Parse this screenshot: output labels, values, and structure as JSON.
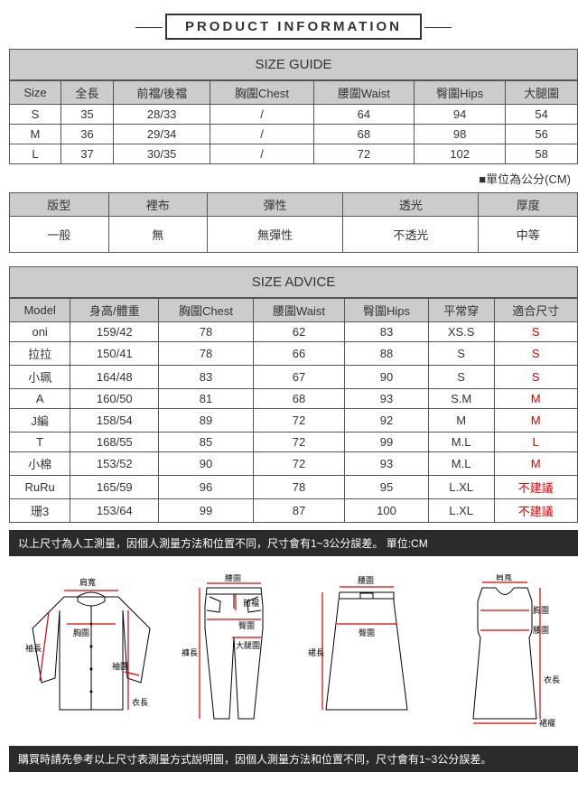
{
  "header": {
    "title": "PRODUCT INFORMATION"
  },
  "sizeGuide": {
    "title": "SIZE GUIDE",
    "columns": [
      "Size",
      "全長",
      "前襠/後襠",
      "胸圍Chest",
      "腰圍Waist",
      "臀圍Hips",
      "大腿圍"
    ],
    "rows": [
      [
        "S",
        "35",
        "28/33",
        "/",
        "64",
        "94",
        "54"
      ],
      [
        "M",
        "36",
        "29/34",
        "/",
        "68",
        "98",
        "56"
      ],
      [
        "L",
        "37",
        "30/35",
        "/",
        "72",
        "102",
        "58"
      ]
    ]
  },
  "unitNote": "■單位為公分(CM)",
  "attributes": {
    "columns": [
      "版型",
      "裡布",
      "彈性",
      "透光",
      "厚度"
    ],
    "row": [
      "一般",
      "無",
      "無彈性",
      "不透光",
      "中等"
    ]
  },
  "sizeAdvice": {
    "title": "SIZE ADVICE",
    "columns": [
      "Model",
      "身高/體重",
      "胸圍Chest",
      "腰圍Waist",
      "臀圍Hips",
      "平常穿",
      "適合尺寸"
    ],
    "rows": [
      {
        "cells": [
          "oni",
          "159/42",
          "78",
          "62",
          "83",
          "XS.S"
        ],
        "fit": "S"
      },
      {
        "cells": [
          "拉拉",
          "150/41",
          "78",
          "66",
          "88",
          "S"
        ],
        "fit": "S"
      },
      {
        "cells": [
          "小珮",
          "164/48",
          "83",
          "67",
          "90",
          "S"
        ],
        "fit": "S"
      },
      {
        "cells": [
          "A",
          "160/50",
          "81",
          "68",
          "93",
          "S.M"
        ],
        "fit": "M"
      },
      {
        "cells": [
          "J編",
          "158/54",
          "89",
          "72",
          "92",
          "M"
        ],
        "fit": "M"
      },
      {
        "cells": [
          "T",
          "168/55",
          "85",
          "72",
          "99",
          "M.L"
        ],
        "fit": "L"
      },
      {
        "cells": [
          "小棉",
          "153/52",
          "90",
          "72",
          "93",
          "M.L"
        ],
        "fit": "M"
      },
      {
        "cells": [
          "RuRu",
          "165/59",
          "96",
          "78",
          "95",
          "L.XL"
        ],
        "fit": "不建議"
      },
      {
        "cells": [
          "珊3",
          "153/64",
          "99",
          "87",
          "100",
          "L.XL"
        ],
        "fit": "不建議"
      }
    ]
  },
  "note1": "以上尺寸為人工測量，因個人測量方法和位置不同，尺寸會有1~3公分誤差。 單位:CM",
  "note2": "購買時請先參考以上尺寸表測量方式說明圖，因個人測量方法和位置不同，尺寸會有1~3公分誤差。",
  "diagramLabels": {
    "shoulder": "肩寬",
    "chest": "胸圍",
    "sleeve": "袖長",
    "cuff": "袖圍",
    "length": "衣長",
    "waistline": "腰圍",
    "front": "前襠",
    "hip": "臀圍",
    "thigh": "大腿圍",
    "pantLen": "褲長",
    "skirtLen": "裙長",
    "hem": "裙襬"
  }
}
